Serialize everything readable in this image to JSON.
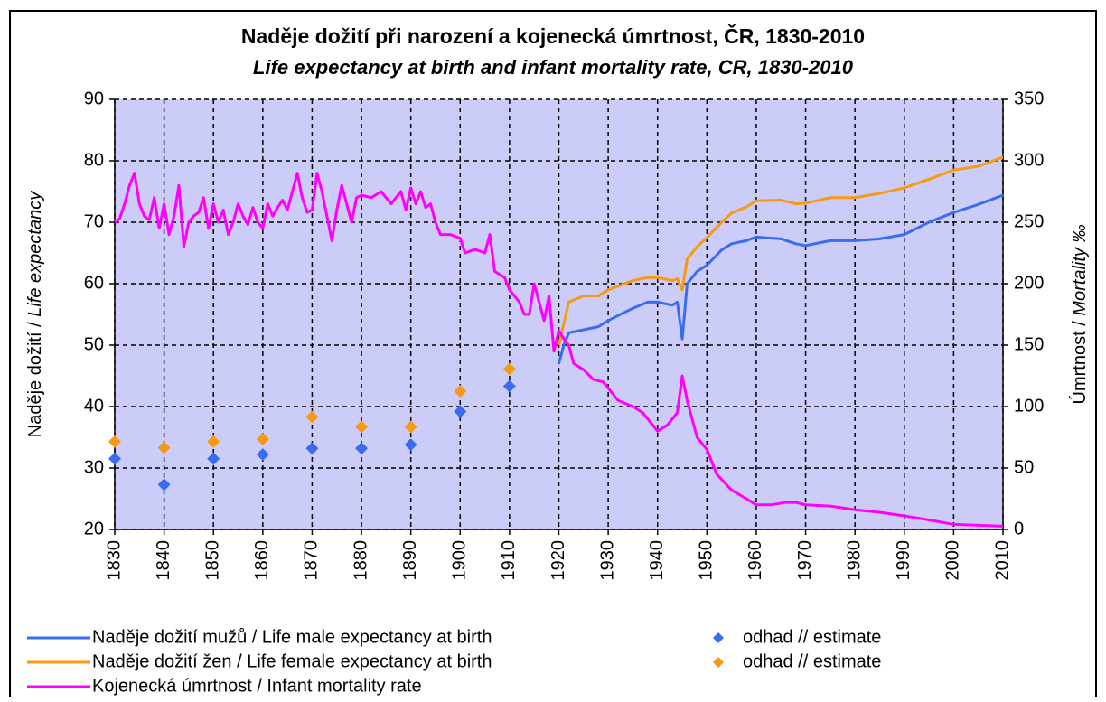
{
  "chart_data": {
    "type": "line",
    "title": "Naděje dožití při narození a kojenecká úmrtnost, ČR, 1830-2010",
    "subtitle": "Life expectancy at birth and infant mortality rate, CR, 1830-2010",
    "y_label": {
      "cs": "Naděje dožití /",
      "en": "Life expectancy"
    },
    "y2_label": {
      "cs": "Úmrtnost /",
      "en": "Mortality ‰"
    },
    "xlim": [
      1830,
      2010
    ],
    "xticks": [
      1830,
      1840,
      1850,
      1860,
      1870,
      1880,
      1890,
      1900,
      1910,
      1920,
      1930,
      1940,
      1950,
      1960,
      1970,
      1980,
      1990,
      2000,
      2010
    ],
    "ylim": [
      20,
      90
    ],
    "yticks": [
      20,
      30,
      40,
      50,
      60,
      70,
      80,
      90
    ],
    "y2lim": [
      0,
      350
    ],
    "y2ticks": [
      0,
      50,
      100,
      150,
      200,
      250,
      300,
      350
    ],
    "grid": true,
    "legend": "bottom",
    "series": [
      {
        "name": "Naděje dožití mužů / Life male expectancy at birth",
        "color": "#3a6cf0",
        "type": "line",
        "x": [
          1920,
          1921,
          1922,
          1925,
          1928,
          1930,
          1935,
          1938,
          1940,
          1943,
          1944,
          1945,
          1946,
          1948,
          1950,
          1953,
          1955,
          1958,
          1960,
          1965,
          1968,
          1970,
          1975,
          1980,
          1985,
          1990,
          1995,
          2000,
          2005,
          2010
        ],
        "values": [
          47,
          50,
          52,
          52.5,
          53,
          54,
          56,
          57,
          57,
          56.5,
          57,
          51,
          60,
          62,
          63,
          65.5,
          66.5,
          67,
          67.6,
          67.3,
          66.5,
          66.2,
          67,
          67,
          67.3,
          68,
          70,
          71.6,
          72.9,
          74.4
        ]
      },
      {
        "name": "Naděje dožití žen / Life female expectancy at birth",
        "color": "#f59a12",
        "type": "line",
        "x": [
          1920,
          1922,
          1925,
          1928,
          1930,
          1935,
          1938,
          1940,
          1943,
          1944,
          1945,
          1946,
          1948,
          1950,
          1953,
          1955,
          1958,
          1960,
          1965,
          1968,
          1970,
          1975,
          1980,
          1985,
          1990,
          1995,
          2000,
          2005,
          2010
        ],
        "values": [
          50,
          57,
          58,
          58,
          59,
          60.5,
          61,
          61,
          60.5,
          60.8,
          59,
          64,
          66,
          67.5,
          70,
          71.5,
          72.5,
          73.5,
          73.6,
          73,
          73.1,
          74,
          74,
          74.7,
          75.6,
          77,
          78.5,
          79.1,
          80.6
        ]
      },
      {
        "name": "Kojenecká úmrtnost / Infant mortality rate",
        "color": "#ff00ff",
        "type": "line",
        "axis": "y2",
        "x": [
          1830,
          1831,
          1832,
          1833,
          1834,
          1835,
          1836,
          1837,
          1838,
          1839,
          1840,
          1841,
          1842,
          1843,
          1844,
          1845,
          1846,
          1847,
          1848,
          1849,
          1850,
          1851,
          1852,
          1853,
          1854,
          1855,
          1856,
          1857,
          1858,
          1859,
          1860,
          1861,
          1862,
          1863,
          1864,
          1865,
          1866,
          1867,
          1868,
          1869,
          1870,
          1871,
          1872,
          1873,
          1874,
          1875,
          1876,
          1877,
          1878,
          1879,
          1880,
          1882,
          1884,
          1885,
          1886,
          1888,
          1889,
          1890,
          1891,
          1892,
          1893,
          1894,
          1895,
          1896,
          1898,
          1900,
          1901,
          1903,
          1905,
          1906,
          1907,
          1909,
          1910,
          1911,
          1912,
          1913,
          1914,
          1915,
          1916,
          1917,
          1918,
          1919,
          1920,
          1921,
          1922,
          1923,
          1925,
          1927,
          1929,
          1930,
          1932,
          1935,
          1937,
          1939,
          1940,
          1942,
          1944,
          1945,
          1946,
          1948,
          1950,
          1952,
          1955,
          1958,
          1960,
          1963,
          1966,
          1968,
          1970,
          1975,
          1980,
          1985,
          1990,
          1995,
          2000,
          2005,
          2010
        ],
        "values": [
          250,
          253,
          265,
          280,
          290,
          265,
          255,
          252,
          270,
          245,
          265,
          240,
          255,
          280,
          230,
          250,
          255,
          258,
          270,
          245,
          265,
          250,
          260,
          240,
          250,
          265,
          255,
          248,
          262,
          250,
          245,
          265,
          255,
          262,
          268,
          260,
          275,
          290,
          270,
          258,
          260,
          290,
          275,
          255,
          235,
          260,
          280,
          265,
          250,
          270,
          272,
          270,
          275,
          270,
          265,
          275,
          260,
          278,
          265,
          275,
          262,
          265,
          250,
          240,
          240,
          237,
          225,
          228,
          225,
          240,
          210,
          205,
          195,
          190,
          185,
          175,
          175,
          200,
          185,
          170,
          190,
          145,
          162,
          155,
          150,
          135,
          130,
          122,
          120,
          115,
          105,
          100,
          95,
          85,
          80,
          85,
          95,
          125,
          105,
          75,
          65,
          45,
          32,
          25,
          20,
          20,
          22,
          22,
          20,
          19,
          16,
          14,
          11,
          7.7,
          4.1,
          3.4,
          2.7
        ]
      },
      {
        "name": "odhad // estimate",
        "color": "#3a6cf0",
        "type": "scatter",
        "x": [
          1830,
          1840,
          1850,
          1860,
          1870,
          1880,
          1890,
          1900,
          1910
        ],
        "values": [
          31.5,
          27.3,
          31.5,
          32.2,
          33.2,
          33.2,
          33.8,
          39.2,
          43.3
        ]
      },
      {
        "name": "odhad // estimate",
        "color": "#f59a12",
        "type": "scatter",
        "x": [
          1830,
          1840,
          1850,
          1860,
          1870,
          1880,
          1890,
          1900,
          1910
        ],
        "values": [
          34.3,
          33.3,
          34.3,
          34.7,
          38.3,
          36.7,
          36.7,
          42.5,
          46.1
        ]
      }
    ]
  }
}
